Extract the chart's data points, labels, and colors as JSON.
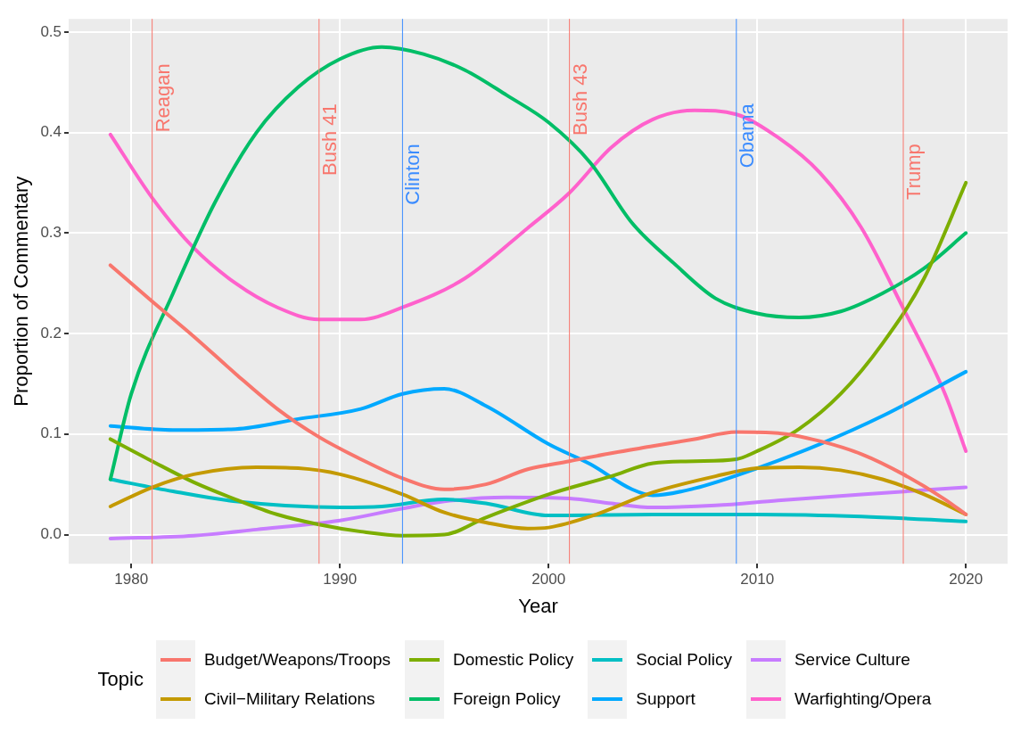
{
  "chart_data": {
    "type": "line",
    "xlabel": "Year",
    "ylabel": "Proportion of Commentary",
    "legend_title": "Topic",
    "xlim": [
      1977,
      2022
    ],
    "xticks": [
      1980,
      1990,
      2000,
      2010,
      2020
    ],
    "ylim": [
      -0.029,
      0.513
    ],
    "yticks": [
      {
        "value": 0,
        "label": "0.0"
      },
      {
        "value": 0.1,
        "label": "0.1"
      },
      {
        "value": 0.2,
        "label": "0.2"
      },
      {
        "value": 0.3,
        "label": "0.3"
      },
      {
        "value": 0.4,
        "label": "0.4"
      },
      {
        "value": 0.5,
        "label": "0.5"
      }
    ],
    "grid": true,
    "legend": "bottom",
    "marker": "none",
    "line_style": "solid",
    "series": [
      {
        "name": "Budget/Weapons/Troops",
        "color": "#f8766d",
        "x": [
          1979,
          1981,
          1983,
          1985,
          1987,
          1989,
          1991,
          1993,
          1995,
          1997,
          1999,
          2001,
          2003,
          2005,
          2007,
          2009,
          2011,
          2013,
          2015,
          2017,
          2019,
          2020
        ],
        "values": [
          0.268,
          0.232,
          0.197,
          0.16,
          0.125,
          0.097,
          0.075,
          0.056,
          0.045,
          0.05,
          0.065,
          0.073,
          0.081,
          0.088,
          0.095,
          0.102,
          0.101,
          0.093,
          0.08,
          0.06,
          0.035,
          0.02
        ]
      },
      {
        "name": "Civil−Military Relations",
        "color": "#c49a00",
        "x": [
          1979,
          1981,
          1983,
          1986,
          1988,
          1990,
          1993,
          1995,
          1997,
          1999,
          2000,
          2002,
          2005,
          2008,
          2010,
          2012,
          2014,
          2016,
          2018,
          2020
        ],
        "values": [
          0.028,
          0.047,
          0.06,
          0.067,
          0.066,
          0.06,
          0.04,
          0.022,
          0.012,
          0.006,
          0.007,
          0.018,
          0.042,
          0.058,
          0.066,
          0.067,
          0.064,
          0.055,
          0.04,
          0.02
        ]
      },
      {
        "name": "Domestic Policy",
        "color": "#7cae00",
        "x": [
          1979,
          1981,
          1983,
          1985,
          1987,
          1989,
          1991,
          1993,
          1995,
          1997,
          2000,
          2003,
          2005,
          2007,
          2009,
          2010,
          2012,
          2014,
          2016,
          2018,
          2020
        ],
        "values": [
          0.095,
          0.073,
          0.052,
          0.035,
          0.02,
          0.01,
          0.003,
          -0.001,
          0,
          0.017,
          0.04,
          0.058,
          0.071,
          0.073,
          0.075,
          0.083,
          0.105,
          0.14,
          0.19,
          0.255,
          0.35
        ]
      },
      {
        "name": "Foreign Policy",
        "color": "#00be67",
        "x": [
          1979,
          1980,
          1982,
          1984,
          1986,
          1988,
          1990,
          1992,
          1994,
          1996,
          1998,
          2000,
          2002,
          2004,
          2006,
          2008,
          2010,
          2012,
          2014,
          2016,
          2018,
          2020
        ],
        "values": [
          0.055,
          0.14,
          0.24,
          0.33,
          0.4,
          0.445,
          0.473,
          0.485,
          0.478,
          0.462,
          0.437,
          0.41,
          0.37,
          0.31,
          0.27,
          0.235,
          0.22,
          0.216,
          0.222,
          0.24,
          0.265,
          0.3
        ]
      },
      {
        "name": "Social Policy",
        "color": "#00bfc4",
        "x": [
          1979,
          1982,
          1985,
          1990,
          1992,
          1995,
          1997,
          2000,
          2005,
          2010,
          2015,
          2020
        ],
        "values": [
          0.055,
          0.043,
          0.033,
          0.027,
          0.028,
          0.035,
          0.031,
          0.019,
          0.02,
          0.02,
          0.018,
          0.013
        ]
      },
      {
        "name": "Support",
        "color": "#00a9ff",
        "x": [
          1979,
          1982,
          1985,
          1988,
          1991,
          1993,
          1995,
          1997,
          2000,
          2002,
          2004,
          2005,
          2007,
          2010,
          2013,
          2016,
          2020
        ],
        "values": [
          0.108,
          0.104,
          0.105,
          0.115,
          0.125,
          0.14,
          0.145,
          0.128,
          0.09,
          0.07,
          0.045,
          0.039,
          0.046,
          0.066,
          0.09,
          0.118,
          0.162
        ]
      },
      {
        "name": "Service Culture",
        "color": "#c77cff",
        "x": [
          1979,
          1983,
          1986,
          1990,
          1993,
          1995,
          1998,
          2001,
          2003,
          2005,
          2008,
          2011,
          2015,
          2020
        ],
        "values": [
          -0.004,
          -0.001,
          0.005,
          0.014,
          0.026,
          0.033,
          0.037,
          0.036,
          0.031,
          0.027,
          0.029,
          0.034,
          0.04,
          0.047
        ]
      },
      {
        "name": "Warfighting/Opera",
        "color": "#ff61cc",
        "x": [
          1979,
          1981,
          1983,
          1985,
          1987,
          1989,
          1991,
          1993,
          1996,
          1999,
          2001,
          2003,
          2005,
          2007,
          2009,
          2011,
          2013,
          2015,
          2017,
          2019,
          2020
        ],
        "values": [
          0.398,
          0.335,
          0.285,
          0.25,
          0.226,
          0.214,
          0.214,
          0.226,
          0.255,
          0.305,
          0.34,
          0.385,
          0.413,
          0.422,
          0.418,
          0.395,
          0.36,
          0.305,
          0.225,
          0.14,
          0.083
        ]
      }
    ],
    "ref_lines": [
      {
        "axis": "x",
        "value": 1981,
        "label": "Reagan",
        "color": "#f8766d"
      },
      {
        "axis": "x",
        "value": 1989,
        "label": "Bush 41",
        "color": "#f8766d"
      },
      {
        "axis": "x",
        "value": 1993,
        "label": "Clinton",
        "color": "#3b8cff"
      },
      {
        "axis": "x",
        "value": 2001,
        "label": "Bush 43",
        "color": "#f8766d"
      },
      {
        "axis": "x",
        "value": 2009,
        "label": "Obama",
        "color": "#3b8cff"
      },
      {
        "axis": "x",
        "value": 2017,
        "label": "Trump",
        "color": "#f8766d"
      }
    ]
  }
}
